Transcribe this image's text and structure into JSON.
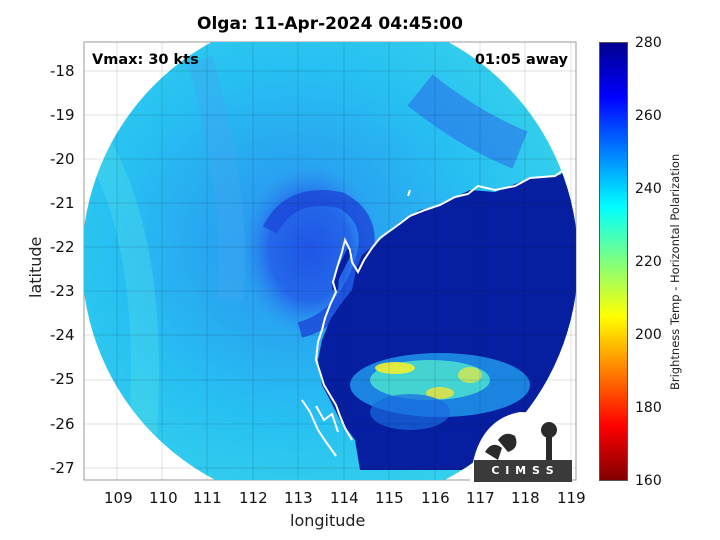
{
  "title": "Olga: 11-Apr-2024 04:45:00",
  "vmax_text": "Vmax: 30 kts",
  "time_away_text": "01:05 away",
  "xlabel": "longitude",
  "ylabel": "latitude",
  "x_ticks": [
    "109",
    "110",
    "111",
    "112",
    "113",
    "114",
    "115",
    "116",
    "117",
    "118",
    "119"
  ],
  "y_ticks": [
    "-18",
    "-19",
    "-20",
    "-21",
    "-22",
    "-23",
    "-24",
    "-25",
    "-26",
    "-27"
  ],
  "colorbar": {
    "label": "Brightness Temp - Horizontal Polarization",
    "min": 160,
    "max": 280,
    "ticks": [
      "280",
      "260",
      "240",
      "220",
      "200",
      "180",
      "160"
    ]
  },
  "logo_text": "C I M S S",
  "map_data": {
    "x_range": [
      108.3,
      119.1
    ],
    "y_range": [
      -27.25,
      -17.35
    ],
    "swath_center": [
      113.75,
      -22.2
    ],
    "swath_radius_deg": 5.35
  },
  "colors": {
    "ocean_light": "#2fb4f0",
    "storm": "#2150e0",
    "land": "#06209f",
    "coast": "#ffffff"
  }
}
